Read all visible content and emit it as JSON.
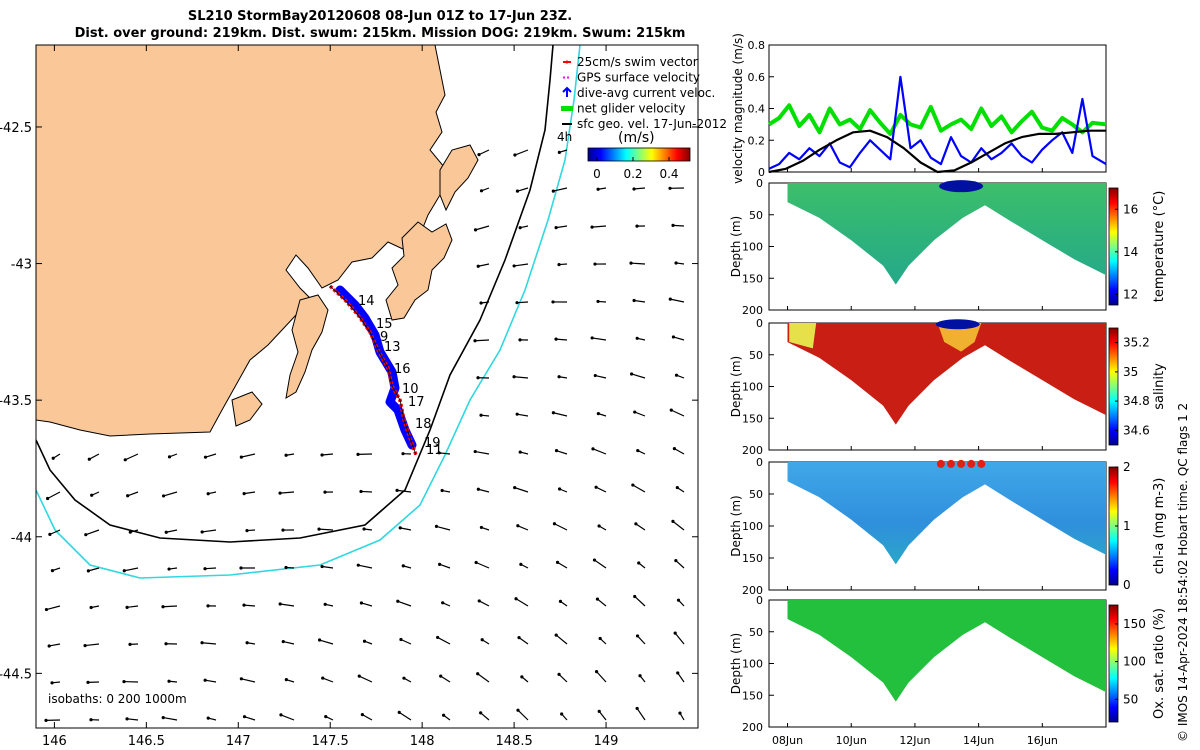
{
  "title_line1": "SL210 StormBay20120608 08-Jun 01Z to 17-Jun 23Z.",
  "title_line2": "Dist. over ground: 219km. Dist. swum: 215km. Mission DOG: 219km. Swum: 215km",
  "colors": {
    "land": "#fac898",
    "track_red": "#ff0000",
    "current_blue": "#0000ff",
    "glider_green": "#00e000",
    "sfc_black": "#000000",
    "isobath_cyan": "#30d8e0",
    "gps_magenta": "#ff00ff"
  },
  "map": {
    "type": "map",
    "lon_ticks": [
      146,
      146.5,
      147,
      147.5,
      148,
      148.5,
      149
    ],
    "lon_labels": [
      "146",
      "146.5",
      "147",
      "147.5",
      "148",
      "148.5",
      "149"
    ],
    "lat_ticks": [
      -42.5,
      -43,
      -43.5,
      -44,
      -44.5
    ],
    "lat_labels": [
      "-42.5",
      "-43",
      "-43.5",
      "-44",
      "-44.5"
    ],
    "lon_range": [
      145.9,
      149.5
    ],
    "lat_range": [
      -42.2,
      -44.7
    ],
    "legend": [
      {
        "label": "25cm/s swim vector",
        "color": "#ff0000",
        "kind": "dot"
      },
      {
        "label": "GPS surface velocity",
        "color": "#ff00ff",
        "kind": "dash"
      },
      {
        "label": "dive-avg current veloc.",
        "color": "#0000ff",
        "kind": "arrow"
      },
      {
        "label": "net glider velocity",
        "color": "#00e000",
        "kind": "thick"
      },
      {
        "label": "sfc geo. vel. 17-Jun-2012",
        "color": "#000000",
        "kind": "line"
      }
    ],
    "legend_time_label": "4h",
    "colorbar_title": "(m/s)",
    "colorbar_ticks": [
      "0",
      "0.2",
      "0.4"
    ],
    "isobath_note": "isobaths: 0   200  1000m",
    "day_labels": [
      "14",
      "15",
      "9",
      "13",
      "16",
      "10",
      "17",
      "18",
      "19",
      "11"
    ]
  },
  "chart_data": [
    {
      "type": "line",
      "ylabel": "velocity magnitude (m/s)",
      "ylim": [
        0,
        0.8
      ],
      "yticks": [
        "0",
        "0.2",
        "0.4",
        "0.6",
        "0.8"
      ],
      "xlim": [
        0,
        10
      ],
      "series": [
        {
          "name": "net glider velocity",
          "color": "#00e000",
          "x": [
            0,
            0.3,
            0.6,
            0.9,
            1.2,
            1.5,
            1.8,
            2.1,
            2.4,
            2.7,
            3.0,
            3.3,
            3.6,
            3.9,
            4.2,
            4.5,
            4.8,
            5.1,
            5.4,
            5.7,
            6.0,
            6.3,
            6.6,
            6.9,
            7.2,
            7.5,
            7.8,
            8.1,
            8.4,
            8.7,
            9.0,
            9.3,
            9.6,
            10
          ],
          "y": [
            0.3,
            0.34,
            0.42,
            0.29,
            0.36,
            0.25,
            0.4,
            0.3,
            0.33,
            0.27,
            0.39,
            0.31,
            0.24,
            0.36,
            0.3,
            0.28,
            0.41,
            0.26,
            0.3,
            0.33,
            0.27,
            0.4,
            0.29,
            0.35,
            0.25,
            0.32,
            0.38,
            0.28,
            0.26,
            0.34,
            0.3,
            0.25,
            0.31,
            0.3
          ]
        },
        {
          "name": "dive-avg current veloc.",
          "color": "#0000ff",
          "x": [
            0,
            0.3,
            0.6,
            0.9,
            1.2,
            1.5,
            1.8,
            2.1,
            2.4,
            2.7,
            3.0,
            3.3,
            3.6,
            3.9,
            4.2,
            4.5,
            4.8,
            5.1,
            5.4,
            5.7,
            6.0,
            6.3,
            6.6,
            6.9,
            7.2,
            7.5,
            7.8,
            8.1,
            8.4,
            8.7,
            9.0,
            9.3,
            9.6,
            10
          ],
          "y": [
            0.02,
            0.05,
            0.12,
            0.08,
            0.15,
            0.1,
            0.18,
            0.06,
            0.03,
            0.12,
            0.2,
            0.14,
            0.08,
            0.6,
            0.15,
            0.2,
            0.09,
            0.05,
            0.22,
            0.1,
            0.06,
            0.15,
            0.08,
            0.12,
            0.18,
            0.1,
            0.06,
            0.14,
            0.2,
            0.25,
            0.12,
            0.46,
            0.1,
            0.05
          ]
        },
        {
          "name": "sfc geo. vel. 17-Jun-2012",
          "color": "#000000",
          "x": [
            0,
            0.5,
            1,
            1.5,
            2,
            2.5,
            3,
            3.5,
            4,
            4.5,
            5,
            5.5,
            6,
            6.5,
            7,
            7.5,
            8,
            8.5,
            9,
            9.5,
            10
          ],
          "y": [
            0.0,
            0.02,
            0.07,
            0.14,
            0.2,
            0.25,
            0.26,
            0.22,
            0.15,
            0.06,
            0.0,
            0.01,
            0.06,
            0.12,
            0.18,
            0.22,
            0.24,
            0.24,
            0.25,
            0.26,
            0.26
          ]
        }
      ]
    },
    {
      "type": "heatmap",
      "ylabel": "Depth (m)",
      "ylim": [
        200,
        0
      ],
      "yticks": [
        "0",
        "50",
        "100",
        "150",
        "200"
      ],
      "colorbar_label": "temperature (°C)",
      "colorbar_ticks": [
        "12",
        "14",
        "16"
      ],
      "crange": [
        11.5,
        17
      ]
    },
    {
      "type": "heatmap",
      "ylabel": "Depth (m)",
      "ylim": [
        200,
        0
      ],
      "yticks": [
        "0",
        "50",
        "100",
        "150",
        "200"
      ],
      "colorbar_label": "salinity",
      "colorbar_ticks": [
        "34.6",
        "34.8",
        "35",
        "35.2"
      ],
      "crange": [
        34.5,
        35.3
      ]
    },
    {
      "type": "heatmap",
      "ylabel": "Depth (m)",
      "ylim": [
        200,
        0
      ],
      "yticks": [
        "0",
        "50",
        "100",
        "150",
        "200"
      ],
      "colorbar_label": "chl-a (mg m-3)",
      "colorbar_ticks": [
        "0",
        "1",
        "2"
      ],
      "crange": [
        0,
        2
      ]
    },
    {
      "type": "heatmap",
      "ylabel": "Depth (m)",
      "ylim": [
        200,
        0
      ],
      "yticks": [
        "0",
        "50",
        "100",
        "150",
        "200"
      ],
      "colorbar_label": "Ox. sat. ratio (%)",
      "colorbar_ticks": [
        "50",
        "100",
        "150"
      ],
      "crange": [
        20,
        175
      ],
      "x_ticks": [
        "08Jun",
        "10Jun",
        "12Jun",
        "14Jun",
        "16Jun"
      ]
    }
  ],
  "profile_depth_max_m": [
    [
      0,
      30
    ],
    [
      1,
      55
    ],
    [
      2,
      90
    ],
    [
      3,
      130
    ],
    [
      3.4,
      160
    ],
    [
      3.8,
      130
    ],
    [
      4.6,
      90
    ],
    [
      5.5,
      55
    ],
    [
      6.2,
      35
    ],
    [
      7,
      60
    ],
    [
      8,
      90
    ],
    [
      9,
      120
    ],
    [
      9.6,
      135
    ],
    [
      10,
      145
    ]
  ],
  "side_credit": "© IMOS 14-Apr-2024 18:54:02 Hobart time. QC flags 1  2"
}
